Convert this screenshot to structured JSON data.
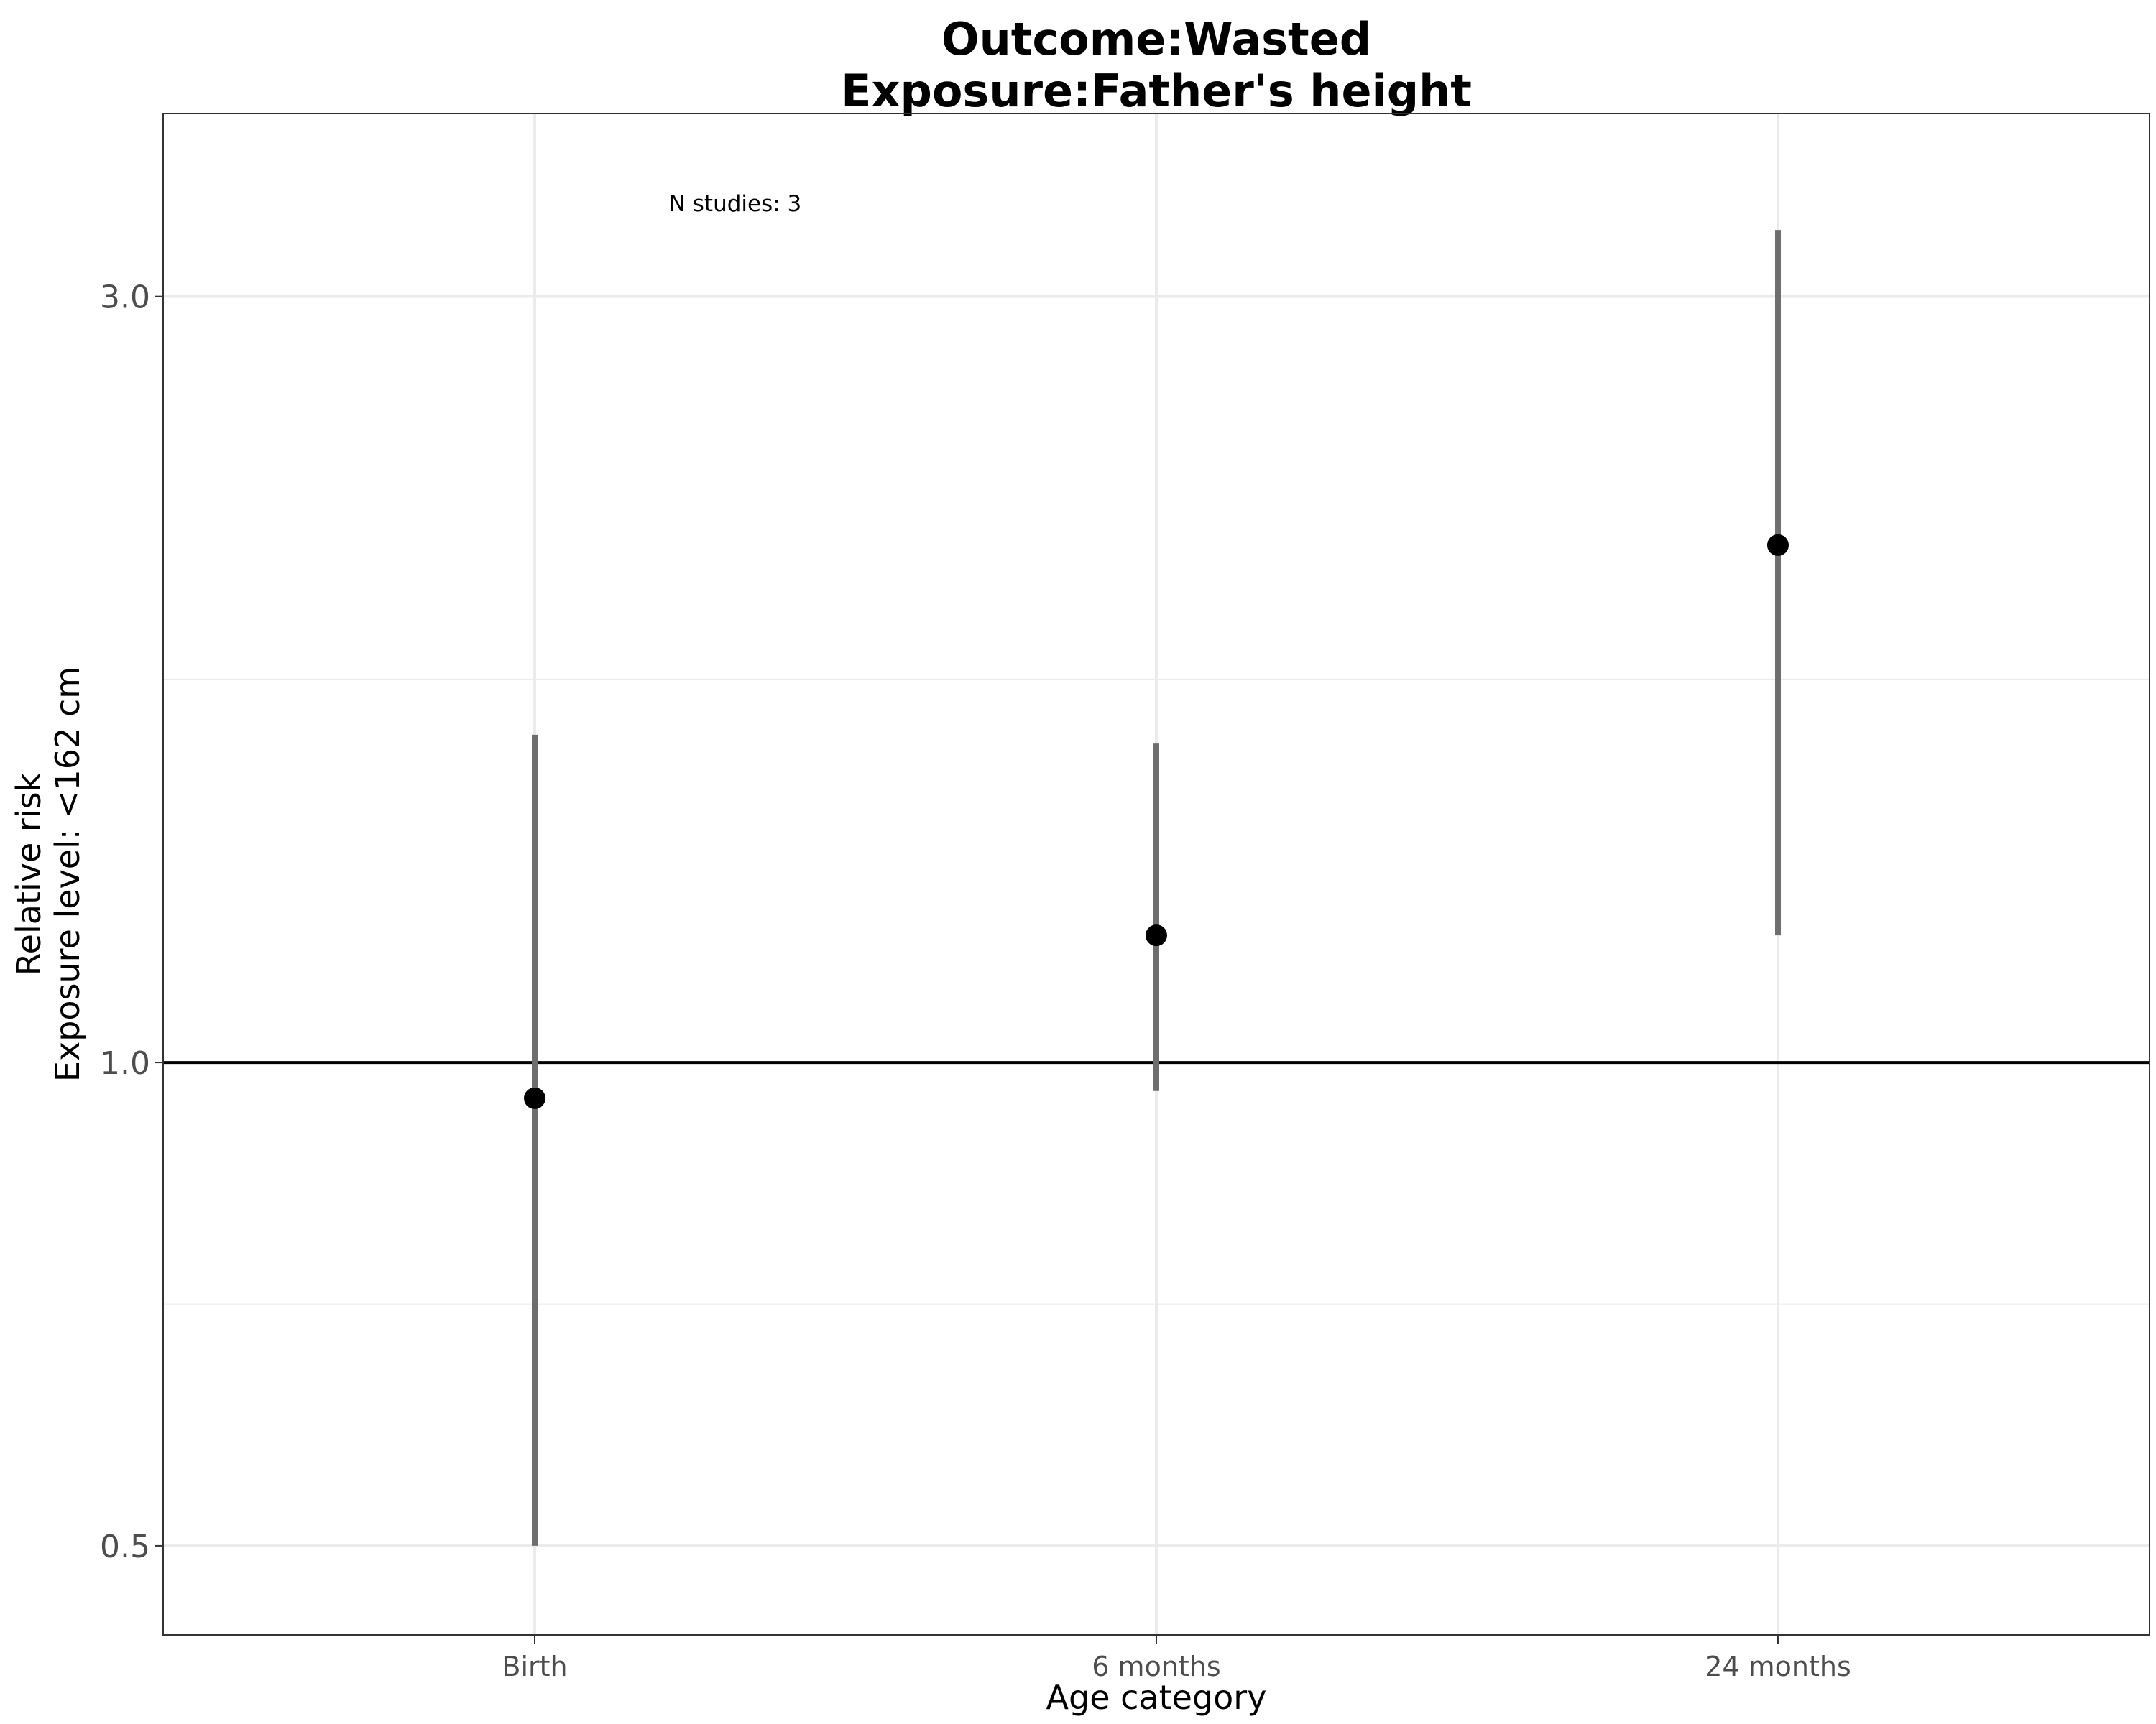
{
  "chart_data": {
    "type": "scatter",
    "title_lines": [
      "Outcome:Wasted",
      "Exposure:Father's height"
    ],
    "xlabel": "Age category",
    "ylabel_lines": [
      "Relative risk",
      "Exposure level: <162 cm"
    ],
    "categories": [
      "Birth",
      "6 months",
      "24 months"
    ],
    "points": [
      {
        "category": "Birth",
        "estimate": 0.95,
        "ci_lower": 0.5,
        "ci_upper": 1.6
      },
      {
        "category": "6 months",
        "estimate": 1.2,
        "ci_lower": 0.96,
        "ci_upper": 1.58
      },
      {
        "category": "24 months",
        "estimate": 2.1,
        "ci_lower": 1.2,
        "ci_upper": 3.3
      }
    ],
    "y_scale": "log",
    "ylim": [
      0.44,
      3.9
    ],
    "y_ticks": [
      0.5,
      1.0,
      3.0
    ],
    "y_tick_labels": [
      "0.5",
      "1.0",
      "3.0"
    ],
    "y_minor_gridlines": [
      0.707,
      1.732
    ],
    "reference_line": 1.0,
    "annotation": "N studies: 3",
    "grid": true,
    "legend": "none",
    "colors": {
      "point": "#000000",
      "interval": "#6e6e6e",
      "reference_line": "#000000",
      "gridline": "#ebebeb",
      "panel_border": "#333333"
    }
  }
}
